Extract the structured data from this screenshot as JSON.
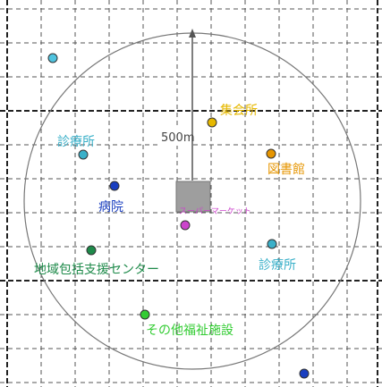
{
  "map": {
    "radius_label": "500m",
    "center": {
      "label": "スーパーマーケット",
      "color": "#cc44cc"
    },
    "facilities": [
      {
        "id": "clinic-topleft",
        "icon": "circle-marker-icon",
        "label": "",
        "color": "#4fc3df"
      },
      {
        "id": "community-hall",
        "icon": "circle-marker-icon",
        "label": "集会所",
        "color": "#e6b800"
      },
      {
        "id": "library",
        "icon": "circle-marker-icon",
        "label": "図書館",
        "color": "#e69500"
      },
      {
        "id": "clinic-left",
        "icon": "circle-marker-icon",
        "label": "診療所",
        "color": "#3ab0c9"
      },
      {
        "id": "hospital",
        "icon": "circle-marker-icon",
        "label": "病院",
        "color": "#1a3fc0"
      },
      {
        "id": "regional-support",
        "icon": "circle-marker-icon",
        "label": "地域包括支援センター",
        "color": "#1e8a4a"
      },
      {
        "id": "clinic-right",
        "icon": "circle-marker-icon",
        "label": "診療所",
        "color": "#3ab0c9"
      },
      {
        "id": "welfare",
        "icon": "circle-marker-icon",
        "label": "その他福祉施設",
        "color": "#33cc33"
      },
      {
        "id": "outer-bottomright",
        "icon": "circle-marker-icon",
        "label": "",
        "color": "#1a3fc0"
      }
    ]
  }
}
